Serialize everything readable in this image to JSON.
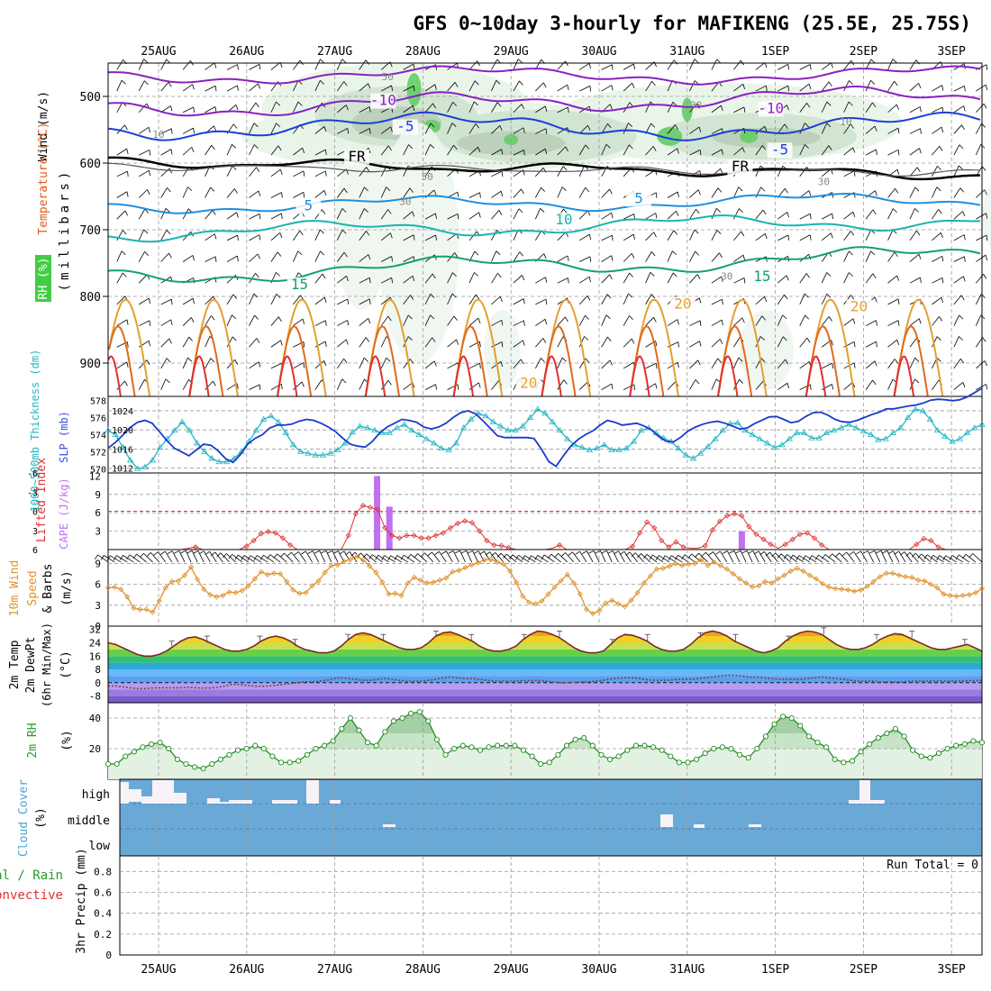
{
  "chart_data": {
    "type": "line",
    "title": "GFS 0~10day 3-hourly for MAFIKENG (25.5E, 25.75S)",
    "dates": [
      "25AUG",
      "26AUG",
      "27AUG",
      "28AUG",
      "29AUG",
      "30AUG",
      "31AUG",
      "1SEP",
      "2SEP",
      "3SEP"
    ],
    "upper": {
      "ylabel": "(millibars)",
      "ylabel_wind": "Wind (m/s)",
      "ylabel_temp": "Temperature (°C)",
      "ylabel_rh": "RH (%)",
      "ylim": [
        450,
        950
      ],
      "ticks": [
        "500",
        "600",
        "700",
        "800",
        "900"
      ],
      "tick_values": [
        500,
        600,
        700,
        800,
        900
      ],
      "contour_labels": [
        {
          "text": "-10",
          "t": 2.55,
          "p": 513,
          "color": "#8b1fc4"
        },
        {
          "text": "-10",
          "t": 6.95,
          "p": 525,
          "color": "#8b1fc4"
        },
        {
          "text": "-5",
          "t": 2.8,
          "p": 552,
          "color": "#1a3fd6"
        },
        {
          "text": "-5",
          "t": 7.05,
          "p": 587,
          "color": "#1a3fd6"
        },
        {
          "text": "FR",
          "t": 2.25,
          "p": 597,
          "color": "#000000"
        },
        {
          "text": "FR",
          "t": 6.6,
          "p": 612,
          "color": "#000000"
        },
        {
          "text": "5",
          "t": 1.7,
          "p": 671,
          "color": "#1e8fe0"
        },
        {
          "text": "5",
          "t": 5.45,
          "p": 660,
          "color": "#1e8fe0"
        },
        {
          "text": "10",
          "t": 4.6,
          "p": 692,
          "color": "#1ab3b3"
        },
        {
          "text": "15",
          "t": 1.6,
          "p": 789,
          "color": "#13a070"
        },
        {
          "text": "15",
          "t": 6.85,
          "p": 777,
          "color": "#13a070"
        },
        {
          "text": "20",
          "t": 5.95,
          "p": 818,
          "color": "#e3a030"
        },
        {
          "text": "20",
          "t": 7.95,
          "p": 822,
          "color": "#e3a030"
        },
        {
          "text": "20",
          "t": 4.2,
          "p": 937,
          "color": "#e3a030"
        },
        {
          "text": "50",
          "t": 2.6,
          "p": 476,
          "color": "#888888"
        },
        {
          "text": "30",
          "t": 6.1,
          "p": 518,
          "color": "#888888"
        },
        {
          "text": "10",
          "t": 0.0,
          "p": 562,
          "color": "#888888"
        },
        {
          "text": "10",
          "t": 7.8,
          "p": 543,
          "color": "#888888"
        },
        {
          "text": "50",
          "t": 3.05,
          "p": 626,
          "color": "#888888"
        },
        {
          "text": "30",
          "t": 2.8,
          "p": 663,
          "color": "#888888"
        },
        {
          "text": "30",
          "t": 7.55,
          "p": 633,
          "color": "#888888"
        },
        {
          "text": "30",
          "t": 6.45,
          "p": 775,
          "color": "#888888"
        }
      ]
    },
    "pressure_panel": {
      "ylabel_thickness": "1000~500mb Thickness (dm)",
      "ylabel_slp": "SLP (mb)",
      "thickness_ticks": [
        "570",
        "572",
        "574",
        "576",
        "578"
      ],
      "slp_ticks": [
        "1012",
        "1016",
        "1020",
        "1024"
      ],
      "thickness_range": [
        569.5,
        578.5
      ],
      "slp_range": [
        1011,
        1027
      ],
      "thickness": [
        574.5,
        574,
        572.5,
        571,
        570,
        570.2,
        571,
        572.5,
        573.5,
        574.5,
        575.5,
        574.5,
        573,
        572,
        571.2,
        570.8,
        570.8,
        571.2,
        572,
        573.2,
        574.5,
        575.8,
        576.2,
        575.5,
        574.2,
        572.8,
        572,
        571.8,
        571.6,
        571.6,
        571.8,
        572.2,
        573,
        574.3,
        575,
        574.8,
        574.5,
        574.2,
        574.2,
        574.8,
        575.2,
        574.5,
        574,
        573.5,
        573,
        572.4,
        572.2,
        573,
        574.8,
        575.8,
        576.5,
        576.2,
        575.5,
        575,
        574.5,
        574.5,
        575,
        576,
        577,
        576.5,
        575.5,
        574.5,
        573.5,
        572.8,
        572.5,
        572.2,
        572.4,
        572.8,
        572.2,
        572.2,
        572.4,
        573.2,
        574.5,
        574.8,
        574.2,
        573.6,
        573.2,
        572.4,
        571.6,
        571.2,
        571.8,
        572.6,
        573.5,
        574.5,
        575.3,
        575.4,
        574.5,
        574,
        573.5,
        573,
        572.5,
        572.8,
        573.5,
        574.2,
        574.2,
        573.6,
        573.6,
        574.2,
        574.5,
        574.8,
        575.2,
        574.8,
        574.4,
        574,
        573.4,
        573.5,
        574.2,
        574.8,
        576,
        577,
        576.8,
        575.8,
        574.5,
        573.8,
        573.2,
        573.5,
        574.2,
        574.8,
        575.2
      ],
      "slp": [
        1016.2,
        1017.4,
        1018.9,
        1020.5,
        1021.6,
        1022,
        1021.4,
        1019.6,
        1017.8,
        1016.2,
        1015.4,
        1014.6,
        1015.8,
        1017,
        1016.8,
        1015.6,
        1014,
        1013.2,
        1014.8,
        1017,
        1018.2,
        1019,
        1020.4,
        1021,
        1021,
        1021.2,
        1021.8,
        1022.2,
        1022,
        1021.4,
        1020.6,
        1019.6,
        1018.2,
        1017,
        1016.6,
        1016.4,
        1017.6,
        1019.4,
        1020.6,
        1021.4,
        1022.2,
        1022,
        1021.6,
        1020.6,
        1020.2,
        1020.6,
        1021.4,
        1022.6,
        1023.6,
        1024,
        1023.4,
        1022,
        1020.4,
        1018.8,
        1018.4,
        1018.4,
        1018.4,
        1018.4,
        1018.2,
        1016,
        1013.4,
        1012.4,
        1014.6,
        1016.6,
        1018,
        1019,
        1019.8,
        1021,
        1022,
        1021.6,
        1021,
        1021.2,
        1021.4,
        1020.8,
        1020,
        1018.6,
        1017.6,
        1017.5,
        1018.5,
        1019.8,
        1020.6,
        1021.2,
        1021.6,
        1021.8,
        1021.4,
        1020.8,
        1020.2,
        1020.4,
        1021.3,
        1022,
        1022.7,
        1022.8,
        1022.2,
        1021.5,
        1021.8,
        1022.8,
        1023.6,
        1023.7,
        1023.1,
        1022.2,
        1021.7,
        1021.6,
        1022,
        1022.6,
        1023.2,
        1023.7,
        1024.4,
        1024.4,
        1024.7,
        1025,
        1025.2,
        1025.6,
        1026.2,
        1026.4,
        1026.3,
        1026.1,
        1026.3,
        1026.9,
        1027.8,
        1028.7
      ]
    },
    "instability_panel": {
      "ylabel_li": "Lifted Index",
      "ylabel_cape": "CAPE (J/kg)",
      "li_ticks": [
        "6",
        "3",
        "0",
        "-3",
        "-6"
      ],
      "cape_ticks": [
        "3",
        "6",
        "9",
        "12"
      ],
      "li_range": [
        6,
        -6
      ],
      "cape_range": [
        0,
        12
      ],
      "cape_bars": [
        {
          "t": 2.48,
          "v": 12
        },
        {
          "t": 2.62,
          "v": 7
        },
        {
          "t": 6.62,
          "v": 3
        }
      ],
      "li": [
        6,
        6,
        6,
        6,
        6,
        6,
        6,
        6,
        6,
        6,
        6,
        5.8,
        5.6,
        6,
        6,
        6,
        6,
        6,
        6,
        5.5,
        4.6,
        3.5,
        3.2,
        3.4,
        4.2,
        5.3,
        6,
        6,
        6,
        6,
        6,
        6,
        6,
        3.8,
        0.4,
        -0.9,
        -0.6,
        -0.3,
        2.6,
        3.8,
        4.2,
        3.8,
        3.8,
        4.2,
        4.2,
        3.8,
        3.4,
        2.6,
        1.9,
        1.5,
        1.8,
        3.1,
        4.6,
        5.3,
        5.4,
        5.7,
        6,
        6,
        6,
        6,
        6,
        5.8,
        5.3,
        6,
        6,
        6,
        6,
        6,
        6,
        6,
        6,
        6,
        5.5,
        3.4,
        1.7,
        2.6,
        4.6,
        5.6,
        4.8,
        5.6,
        5.8,
        5.8,
        5.4,
        2.9,
        1.6,
        0.7,
        0.4,
        0.7,
        2.4,
        3.6,
        4.4,
        5.2,
        5.8,
        5.2,
        4.4,
        3.6,
        3.4,
        4.2,
        5.3,
        6,
        6,
        6,
        6,
        6,
        6,
        6,
        6,
        6,
        6,
        6,
        6,
        5.2,
        4.3,
        4.6,
        5.6,
        6,
        6,
        6,
        6,
        6,
        6
      ]
    },
    "wind_panel": {
      "ylabel": "10m Wind Speed & Barbs (m/s)",
      "ylabel_wind": "10m Wind",
      "ylabel_speed": "Speed",
      "ylabel_barbs": "& Barbs",
      "ylabel_units": "(m/s)",
      "ticks": [
        "0",
        "3",
        "6",
        "9"
      ],
      "ylim": [
        0,
        11
      ],
      "speed": [
        5.5,
        5.6,
        5.3,
        4.2,
        2.6,
        2.4,
        2.4,
        2,
        3.6,
        5.5,
        6.4,
        6.5,
        7.3,
        8.5,
        6.7,
        5.3,
        4.5,
        4.2,
        4.4,
        4.9,
        4.8,
        5.1,
        5.8,
        6.8,
        7.8,
        7.4,
        7.6,
        7.5,
        6.4,
        5.2,
        4.7,
        4.8,
        5.8,
        6.5,
        7.7,
        8.7,
        8.8,
        9.3,
        9.6,
        10,
        9.5,
        8.6,
        7.7,
        6.3,
        4.6,
        4.7,
        4.4,
        6.2,
        7,
        6.6,
        6.2,
        6.3,
        6.6,
        6.9,
        7.8,
        8,
        8.4,
        8.8,
        9.1,
        9.5,
        9.6,
        9.2,
        8.9,
        7.9,
        6.3,
        4.3,
        3.4,
        3.2,
        3.6,
        4.6,
        5.6,
        6.5,
        7.4,
        6.2,
        4.6,
        2.4,
        1.8,
        2.2,
        3.3,
        3.7,
        3.2,
        2.8,
        3.7,
        4.8,
        6.2,
        7.2,
        8.2,
        8.3,
        8.6,
        9,
        8.7,
        8.9,
        9,
        9.6,
        8.7,
        9.2,
        8.7,
        8.2,
        7.5,
        6.8,
        6.2,
        5.6,
        5.8,
        6.4,
        6.2,
        6.8,
        7.3,
        7.9,
        8.3,
        7.9,
        7.3,
        6.8,
        6.1,
        5.6,
        5.4,
        5.3,
        5.2,
        5,
        5.2,
        5.7,
        6.4,
        7.1,
        7.6,
        7.6,
        7.3,
        7.1,
        7,
        6.6,
        6.5,
        6,
        5.5,
        4.6,
        4.4,
        4.3,
        4.4,
        4.5,
        4.8,
        5.4
      ]
    },
    "temp_panel": {
      "ylabel_temp": "2m Temp",
      "ylabel_dewpt": "2m DewPt",
      "ylabel_minmax": "(6hr Min/Max)",
      "ylabel_units": "(°C)",
      "ticks": [
        "-8",
        "0",
        "8",
        "16",
        "24",
        "32"
      ],
      "ylim": [
        -12,
        34
      ],
      "temp": [
        24,
        23,
        21,
        19,
        17,
        16,
        16,
        17,
        19,
        22,
        25,
        27,
        27.5,
        26,
        24,
        22,
        20,
        19,
        19,
        20,
        22,
        25,
        27,
        28,
        27,
        25,
        22,
        20,
        19,
        18,
        18,
        19,
        22,
        26,
        29,
        30,
        29,
        27,
        25,
        23,
        21,
        20,
        20,
        21,
        24,
        28,
        30,
        30.5,
        29,
        27,
        25,
        22,
        20,
        19,
        19,
        20,
        22,
        26,
        29,
        31,
        30.5,
        29,
        27,
        24,
        21,
        19,
        18,
        18,
        19,
        23,
        27,
        29,
        28.5,
        27,
        25,
        22,
        20,
        19,
        19,
        20,
        23,
        27,
        30,
        31,
        30,
        28,
        25,
        23,
        21,
        19,
        18,
        19,
        21,
        25,
        28,
        30,
        31,
        30.5,
        29,
        26,
        23,
        21,
        20,
        20,
        21,
        23,
        26,
        28,
        29.5,
        29,
        27,
        25,
        23,
        21,
        20,
        20,
        21,
        22,
        23,
        21,
        19
      ],
      "dewpt": [
        -2,
        -2,
        -2.5,
        -3,
        -3.5,
        -3.5,
        -3.2,
        -3,
        -3,
        -3,
        -3,
        -2.8,
        -3,
        -3.2,
        -3.2,
        -2.8,
        -2,
        -1,
        -1,
        -1.5,
        -2,
        -2.2,
        -2,
        -1.5,
        -1,
        -0.5,
        0,
        0.5,
        0.5,
        0.8,
        1.5,
        2.5,
        3,
        2.5,
        2,
        1.5,
        1.5,
        2,
        2.5,
        2,
        1.5,
        1,
        1,
        1,
        1.5,
        2,
        3,
        3.5,
        3,
        2.5,
        2.5,
        2,
        1.5,
        1,
        1,
        1,
        1,
        1.2,
        1.2,
        1.5,
        1,
        0.5,
        0,
        0,
        0.2,
        0.5,
        0.5,
        1,
        1.5,
        2.2,
        2.8,
        3,
        3,
        2.5,
        1.8,
        1.5,
        1.5,
        1.5,
        2,
        2,
        2,
        2.5,
        3,
        3.5,
        4,
        4.5,
        4.5,
        4,
        3.5,
        3.5,
        3,
        2.5,
        2.2,
        2,
        2,
        2,
        2.5,
        3,
        3.5,
        3,
        2.5,
        2,
        1.5,
        1,
        1,
        1,
        0.5,
        0.5,
        0.5,
        0.5,
        0.8,
        1,
        1,
        1,
        1,
        1,
        1,
        1,
        1.2,
        1.2,
        1.5
      ]
    },
    "rh_panel": {
      "ylabel": "2m RH (%)",
      "ylabel_rh": "2m RH",
      "ylabel_units": "(%)",
      "ticks": [
        "20",
        "40"
      ],
      "ylim": [
        0,
        50
      ],
      "rh": [
        10,
        10,
        15,
        18,
        21,
        23,
        24,
        20,
        13,
        10,
        8,
        7,
        10,
        13,
        16,
        19,
        20,
        22,
        20,
        15,
        11,
        11,
        12,
        16,
        20,
        22,
        25,
        33,
        40,
        32,
        24,
        22,
        31,
        38,
        40,
        43,
        44,
        38,
        26,
        16,
        20,
        22,
        21,
        19,
        21,
        22,
        22,
        22,
        19,
        15,
        10,
        11,
        16,
        22,
        26,
        27,
        22,
        16,
        13,
        15,
        19,
        22,
        22,
        21,
        19,
        15,
        11,
        11,
        13,
        17,
        20,
        21,
        20,
        16,
        14,
        20,
        28,
        36,
        41,
        40,
        35,
        28,
        24,
        21,
        13,
        11,
        12,
        18,
        23,
        27,
        30,
        33,
        28,
        19,
        15,
        14,
        17,
        20,
        22,
        23,
        25,
        24
      ]
    },
    "cloud_panel": {
      "ylabel": "Cloud Cover (%)",
      "ylabel_cloud": "Cloud Cover",
      "ylabel_units": "(%)",
      "levels": [
        "high",
        "middle",
        "low"
      ]
    },
    "precip_panel": {
      "ylabel": "3hr Precip (mm)",
      "ylabel_total": "Total / Rain",
      "ylabel_convective": "Convective",
      "ticks": [
        "0",
        "0.2",
        "0.4",
        "0.6",
        "0.8"
      ],
      "ylim": [
        0,
        0.95
      ],
      "run_total": "Run Total = 0"
    }
  }
}
